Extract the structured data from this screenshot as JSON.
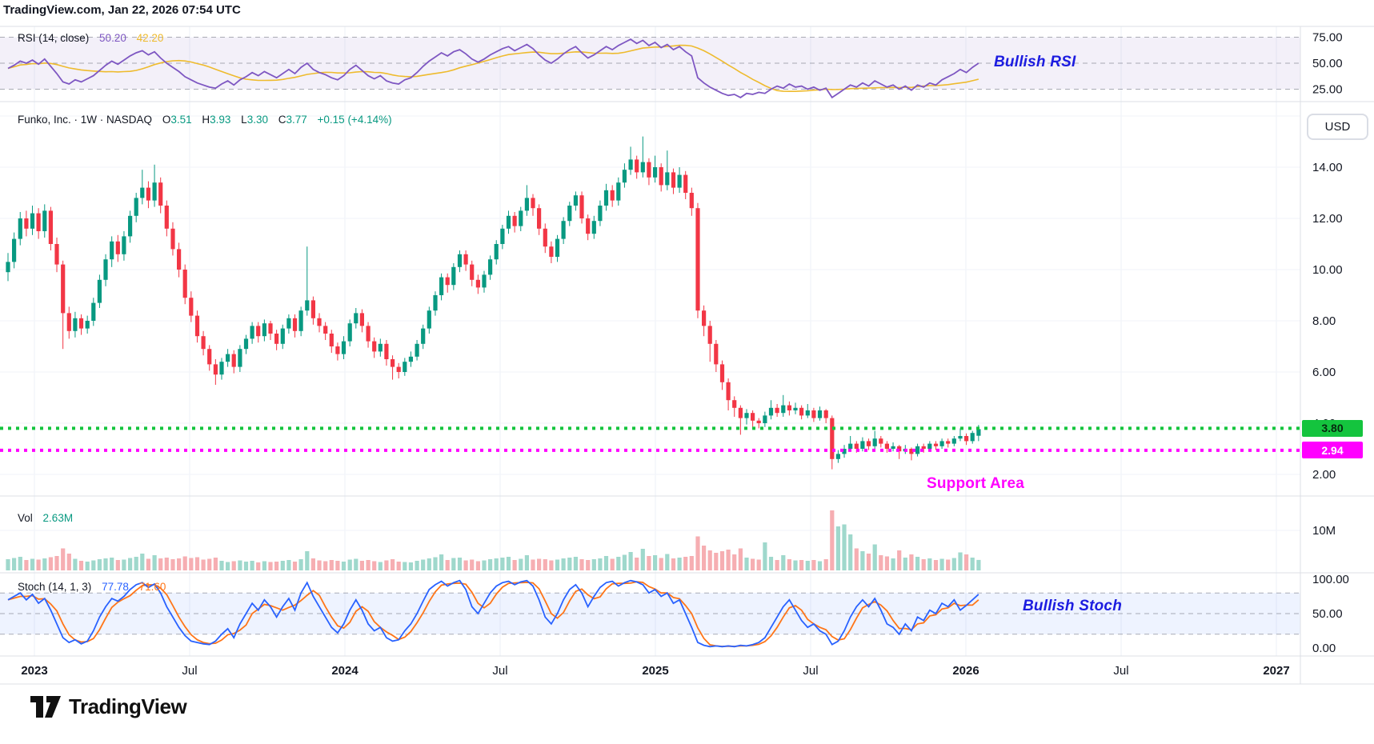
{
  "header": {
    "text": "TradingView.com, Jan 22, 2026 07:54 UTC"
  },
  "footer": {
    "brand": "TradingView"
  },
  "colors": {
    "up": "#089981",
    "down": "#f23645",
    "vol_up": "#9fd8cc",
    "vol_down": "#f6aeb2",
    "rsi": "#7e57c2",
    "rsi_ma": "#eebb2e",
    "stoch_k": "#2962ff",
    "stoch_d": "#ff7518",
    "resistance": "#14c43e",
    "support": "#ff00ff",
    "ann_blue": "#1c1ce0",
    "text": "#131722",
    "grid": "#eef1f7",
    "grid_h": "#f1f3f9",
    "separator": "#dcdfe6",
    "dash": "#80848f",
    "band_rsi": "rgba(126,87,194,0.09)",
    "band_stoch": "rgba(41,98,255,0.08)"
  },
  "legends": {
    "rsi": {
      "name": "RSI (14, close)",
      "value": "50.20",
      "ma": "42.20"
    },
    "symbol": {
      "name": "Funko, Inc. · 1W · NASDAQ",
      "o_label": "O",
      "o": "3.51",
      "h_label": "H",
      "h": "3.93",
      "l_label": "L",
      "l": "3.30",
      "c_label": "C",
      "c": "3.77",
      "change": "+0.15 (+4.14%)"
    },
    "vol": {
      "label": "Vol",
      "value": "2.63M"
    },
    "stoch": {
      "name": "Stoch (14, 1, 3)",
      "k": "77.78",
      "d": "71.60"
    }
  },
  "annotations": {
    "rsi": "Bullish RSI",
    "support": "Support Area",
    "stoch": "Bullish Stoch"
  },
  "axis": {
    "currency": "USD"
  },
  "chart_data": {
    "type": "candlestick",
    "symbol": "Funko, Inc.",
    "timeframe": "1W",
    "exchange": "NASDAQ",
    "last_bar": {
      "open": 3.51,
      "high": 3.93,
      "low": 3.3,
      "close": 3.77,
      "change": "+0.15 (+4.14%)"
    },
    "price_axis_ticks": [
      "14.00",
      "12.00",
      "10.00",
      "8.00",
      "6.00",
      "4.00",
      "2.00"
    ],
    "rsi_axis_ticks": [
      "75.00",
      "50.00",
      "25.00"
    ],
    "stoch_axis_ticks": [
      "100.00",
      "50.00",
      "0.00"
    ],
    "vol_axis_tick": "10M",
    "time_axis": [
      {
        "text": "2023",
        "major": true
      },
      {
        "text": "Jul",
        "major": false
      },
      {
        "text": "2024",
        "major": true
      },
      {
        "text": "Jul",
        "major": false
      },
      {
        "text": "2025",
        "major": true
      },
      {
        "text": "Jul",
        "major": false
      },
      {
        "text": "2026",
        "major": true
      },
      {
        "text": "Jul",
        "major": false
      },
      {
        "text": "2027",
        "major": true
      }
    ],
    "levels": {
      "resistance": 3.8,
      "support": 2.94
    },
    "rsi_current": 50.2,
    "rsi_ma_current": 42.2,
    "stoch_k_current": 77.78,
    "stoch_d_current": 71.6,
    "vol_current_m": 2.63,
    "candles": [
      [
        9.9,
        10.65,
        9.55,
        10.3
      ],
      [
        10.3,
        11.45,
        10.05,
        11.2
      ],
      [
        11.2,
        12.25,
        10.95,
        12.0
      ],
      [
        12.0,
        12.3,
        11.3,
        11.6
      ],
      [
        11.6,
        12.5,
        11.35,
        12.2
      ],
      [
        12.2,
        12.4,
        11.2,
        11.5
      ],
      [
        11.5,
        12.55,
        11.25,
        12.3
      ],
      [
        12.3,
        12.45,
        10.75,
        11.0
      ],
      [
        11.0,
        11.25,
        9.9,
        10.2
      ],
      [
        10.2,
        10.35,
        6.9,
        8.3
      ],
      [
        8.3,
        8.55,
        7.3,
        7.6
      ],
      [
        7.6,
        8.35,
        7.35,
        8.1
      ],
      [
        8.1,
        8.25,
        7.45,
        7.7
      ],
      [
        7.7,
        8.2,
        7.5,
        8.0
      ],
      [
        8.0,
        8.9,
        7.8,
        8.7
      ],
      [
        8.7,
        9.8,
        8.5,
        9.6
      ],
      [
        9.6,
        10.6,
        9.35,
        10.4
      ],
      [
        10.4,
        11.3,
        10.1,
        11.1
      ],
      [
        11.1,
        11.35,
        10.3,
        10.6
      ],
      [
        10.6,
        11.5,
        10.35,
        11.3
      ],
      [
        11.3,
        12.3,
        11.05,
        12.1
      ],
      [
        12.1,
        13.0,
        11.85,
        12.8
      ],
      [
        12.8,
        13.9,
        12.55,
        13.2
      ],
      [
        13.2,
        13.45,
        12.4,
        12.7
      ],
      [
        12.7,
        14.1,
        12.45,
        13.4
      ],
      [
        13.4,
        13.6,
        12.2,
        12.5
      ],
      [
        12.5,
        12.7,
        11.3,
        11.6
      ],
      [
        11.6,
        11.85,
        10.55,
        10.8
      ],
      [
        10.8,
        11.05,
        9.7,
        10.0
      ],
      [
        10.0,
        10.2,
        8.65,
        8.9
      ],
      [
        8.9,
        9.15,
        7.95,
        8.2
      ],
      [
        8.2,
        8.4,
        7.15,
        7.4
      ],
      [
        7.4,
        7.6,
        6.65,
        6.9
      ],
      [
        6.9,
        7.05,
        6.05,
        6.3
      ],
      [
        6.3,
        6.5,
        5.5,
        5.9
      ],
      [
        5.9,
        6.55,
        5.7,
        6.4
      ],
      [
        6.4,
        6.9,
        6.2,
        6.7
      ],
      [
        6.7,
        6.85,
        5.95,
        6.2
      ],
      [
        6.2,
        7.05,
        6.0,
        6.9
      ],
      [
        6.9,
        7.45,
        6.7,
        7.3
      ],
      [
        7.3,
        7.95,
        7.1,
        7.8
      ],
      [
        7.8,
        7.95,
        7.15,
        7.4
      ],
      [
        7.4,
        8.05,
        7.2,
        7.9
      ],
      [
        7.9,
        8.0,
        7.25,
        7.5
      ],
      [
        7.5,
        7.65,
        6.85,
        7.1
      ],
      [
        7.1,
        7.85,
        6.9,
        7.7
      ],
      [
        7.7,
        8.25,
        7.5,
        8.1
      ],
      [
        8.1,
        8.25,
        7.35,
        7.6
      ],
      [
        7.6,
        8.55,
        7.4,
        8.4
      ],
      [
        8.4,
        10.9,
        8.2,
        8.8
      ],
      [
        8.8,
        8.95,
        7.85,
        8.1
      ],
      [
        8.1,
        8.3,
        7.55,
        7.8
      ],
      [
        7.8,
        7.95,
        7.25,
        7.5
      ],
      [
        7.5,
        7.65,
        6.75,
        7.0
      ],
      [
        7.0,
        7.15,
        6.45,
        6.7
      ],
      [
        6.7,
        7.4,
        6.5,
        7.2
      ],
      [
        7.2,
        8.05,
        7.0,
        7.9
      ],
      [
        7.9,
        8.5,
        7.7,
        8.3
      ],
      [
        8.3,
        8.45,
        7.55,
        7.8
      ],
      [
        7.8,
        7.95,
        6.95,
        7.2
      ],
      [
        7.2,
        7.35,
        6.55,
        6.8
      ],
      [
        6.8,
        7.3,
        6.6,
        7.1
      ],
      [
        7.1,
        7.25,
        6.25,
        6.5
      ],
      [
        6.5,
        6.65,
        5.7,
        6.2
      ],
      [
        6.2,
        6.35,
        5.75,
        6.0
      ],
      [
        6.0,
        6.55,
        5.85,
        6.4
      ],
      [
        6.4,
        6.8,
        6.2,
        6.6
      ],
      [
        6.6,
        7.25,
        6.45,
        7.1
      ],
      [
        7.1,
        7.85,
        6.9,
        7.7
      ],
      [
        7.7,
        8.55,
        7.5,
        8.4
      ],
      [
        8.4,
        9.15,
        8.2,
        9.0
      ],
      [
        9.0,
        9.85,
        8.8,
        9.7
      ],
      [
        9.7,
        9.85,
        9.1,
        9.4
      ],
      [
        9.4,
        10.25,
        9.2,
        10.1
      ],
      [
        10.1,
        10.75,
        9.9,
        10.6
      ],
      [
        10.6,
        10.75,
        9.95,
        10.2
      ],
      [
        10.2,
        10.35,
        9.35,
        9.6
      ],
      [
        9.6,
        9.8,
        9.05,
        9.3
      ],
      [
        9.3,
        9.95,
        9.1,
        9.8
      ],
      [
        9.8,
        10.55,
        9.6,
        10.4
      ],
      [
        10.4,
        11.15,
        10.2,
        11.0
      ],
      [
        11.0,
        11.75,
        10.8,
        11.6
      ],
      [
        11.6,
        12.3,
        11.4,
        12.1
      ],
      [
        12.1,
        12.25,
        11.45,
        11.7
      ],
      [
        11.7,
        12.45,
        11.5,
        12.3
      ],
      [
        12.3,
        13.3,
        12.1,
        12.8
      ],
      [
        12.8,
        12.95,
        12.1,
        12.4
      ],
      [
        12.4,
        12.55,
        11.35,
        11.6
      ],
      [
        11.6,
        11.8,
        10.65,
        10.9
      ],
      [
        10.9,
        11.1,
        10.25,
        10.5
      ],
      [
        10.5,
        11.35,
        10.3,
        11.2
      ],
      [
        11.2,
        12.05,
        11.0,
        11.9
      ],
      [
        11.9,
        12.65,
        11.7,
        12.5
      ],
      [
        12.5,
        13.05,
        12.3,
        12.9
      ],
      [
        12.9,
        13.05,
        11.8,
        12.0
      ],
      [
        12.0,
        12.15,
        11.15,
        11.4
      ],
      [
        11.4,
        12.1,
        11.2,
        11.9
      ],
      [
        11.9,
        12.7,
        11.7,
        12.5
      ],
      [
        12.5,
        13.35,
        12.3,
        13.1
      ],
      [
        13.1,
        13.3,
        12.45,
        12.7
      ],
      [
        12.7,
        13.6,
        12.5,
        13.4
      ],
      [
        13.4,
        14.15,
        13.2,
        13.9
      ],
      [
        13.9,
        14.8,
        13.7,
        14.3
      ],
      [
        14.3,
        14.45,
        13.55,
        13.8
      ],
      [
        13.8,
        15.2,
        13.6,
        14.2
      ],
      [
        14.2,
        14.35,
        13.3,
        13.6
      ],
      [
        13.6,
        14.45,
        13.4,
        14.0
      ],
      [
        14.0,
        14.15,
        13.05,
        13.3
      ],
      [
        13.3,
        14.65,
        13.1,
        13.8
      ],
      [
        13.8,
        13.95,
        12.95,
        13.2
      ],
      [
        13.2,
        14.0,
        13.0,
        13.7
      ],
      [
        13.7,
        13.85,
        12.75,
        13.0
      ],
      [
        13.0,
        13.2,
        12.1,
        12.4
      ],
      [
        12.4,
        12.6,
        8.1,
        8.4
      ],
      [
        8.4,
        8.6,
        7.4,
        7.8
      ],
      [
        7.8,
        8.0,
        6.4,
        7.1
      ],
      [
        7.1,
        7.25,
        6.0,
        6.3
      ],
      [
        6.3,
        6.45,
        5.3,
        5.6
      ],
      [
        5.6,
        5.75,
        4.5,
        4.9
      ],
      [
        4.9,
        5.05,
        4.25,
        4.6
      ],
      [
        4.6,
        4.7,
        3.55,
        4.2
      ],
      [
        4.2,
        4.55,
        3.95,
        4.4
      ],
      [
        4.4,
        4.5,
        3.85,
        4.1
      ],
      [
        4.1,
        4.2,
        3.8,
        4.0
      ],
      [
        4.0,
        4.45,
        3.85,
        4.3
      ],
      [
        4.3,
        4.9,
        4.15,
        4.6
      ],
      [
        4.6,
        4.75,
        4.25,
        4.4
      ],
      [
        4.4,
        5.1,
        4.25,
        4.7
      ],
      [
        4.7,
        4.85,
        4.3,
        4.5
      ],
      [
        4.5,
        4.8,
        4.35,
        4.6
      ],
      [
        4.6,
        4.7,
        4.15,
        4.3
      ],
      [
        4.3,
        4.75,
        4.2,
        4.5
      ],
      [
        4.5,
        4.6,
        4.05,
        4.2
      ],
      [
        4.2,
        4.65,
        4.1,
        4.5
      ],
      [
        4.5,
        4.55,
        4.0,
        4.2
      ],
      [
        4.2,
        4.3,
        2.2,
        2.6
      ],
      [
        2.6,
        2.95,
        2.45,
        2.8
      ],
      [
        2.8,
        3.15,
        2.65,
        3.0
      ],
      [
        3.0,
        3.5,
        2.9,
        3.2
      ],
      [
        3.2,
        3.3,
        2.85,
        3.0
      ],
      [
        3.0,
        3.45,
        2.9,
        3.3
      ],
      [
        3.3,
        3.4,
        2.95,
        3.1
      ],
      [
        3.1,
        3.7,
        3.0,
        3.4
      ],
      [
        3.4,
        3.5,
        3.05,
        3.2
      ],
      [
        3.2,
        3.3,
        2.85,
        3.0
      ],
      [
        3.0,
        3.25,
        2.9,
        3.1
      ],
      [
        3.1,
        3.15,
        2.6,
        2.9
      ],
      [
        2.9,
        3.15,
        2.8,
        3.0
      ],
      [
        3.0,
        3.05,
        2.55,
        2.8
      ],
      [
        2.8,
        3.2,
        2.7,
        3.1
      ],
      [
        3.1,
        3.2,
        2.85,
        3.0
      ],
      [
        3.0,
        3.3,
        2.9,
        3.2
      ],
      [
        3.2,
        3.3,
        2.95,
        3.1
      ],
      [
        3.1,
        3.4,
        3.0,
        3.3
      ],
      [
        3.3,
        3.4,
        3.05,
        3.2
      ],
      [
        3.2,
        3.5,
        3.1,
        3.4
      ],
      [
        3.4,
        3.8,
        3.3,
        3.5
      ],
      [
        3.5,
        3.6,
        3.15,
        3.3
      ],
      [
        3.3,
        3.7,
        3.2,
        3.62
      ],
      [
        3.51,
        3.93,
        3.3,
        3.77
      ]
    ],
    "volumes_m": [
      2.8,
      3.1,
      3.4,
      2.6,
      2.9,
      2.7,
      3.0,
      3.3,
      3.6,
      5.5,
      4.2,
      2.9,
      2.4,
      2.2,
      2.5,
      2.8,
      3.0,
      3.2,
      2.6,
      2.7,
      3.1,
      3.4,
      4.2,
      2.9,
      3.8,
      3.0,
      3.2,
      2.8,
      3.0,
      3.5,
      3.1,
      3.3,
      2.7,
      2.9,
      3.2,
      2.4,
      2.1,
      2.3,
      2.5,
      2.2,
      2.4,
      2.0,
      2.3,
      2.1,
      2.2,
      2.4,
      2.6,
      2.2,
      2.8,
      4.8,
      3.0,
      2.5,
      2.3,
      2.6,
      2.4,
      2.2,
      2.7,
      2.9,
      2.4,
      2.6,
      2.3,
      2.1,
      2.5,
      2.8,
      2.2,
      2.1,
      2.0,
      2.4,
      2.7,
      3.0,
      3.3,
      4.0,
      2.6,
      3.1,
      3.2,
      2.5,
      2.7,
      2.3,
      2.5,
      2.8,
      3.0,
      3.2,
      3.4,
      2.6,
      2.9,
      3.8,
      2.7,
      2.9,
      2.8,
      2.5,
      2.7,
      3.0,
      3.2,
      3.4,
      2.8,
      2.6,
      2.8,
      3.0,
      3.6,
      2.9,
      3.4,
      3.9,
      4.6,
      3.2,
      5.4,
      3.6,
      3.8,
      3.1,
      4.1,
      3.0,
      3.2,
      3.4,
      3.6,
      8.5,
      6.2,
      5.0,
      4.4,
      4.8,
      5.2,
      4.0,
      5.5,
      3.2,
      2.9,
      2.7,
      7.0,
      3.4,
      2.6,
      3.8,
      2.8,
      2.5,
      2.6,
      2.4,
      2.6,
      2.3,
      2.8,
      15.0,
      11.0,
      11.5,
      9.0,
      5.5,
      4.8,
      4.2,
      6.5,
      3.8,
      3.5,
      3.0,
      5.0,
      3.2,
      4.0,
      3.4,
      2.8,
      3.0,
      2.6,
      2.9,
      2.7,
      3.1,
      4.5,
      4.0,
      3.2,
      2.63
    ],
    "rsi_values": [
      45,
      48,
      52,
      50,
      53,
      49,
      54,
      47,
      40,
      32,
      30,
      34,
      32,
      35,
      38,
      43,
      48,
      52,
      49,
      53,
      57,
      60,
      62,
      58,
      61,
      55,
      50,
      46,
      42,
      37,
      34,
      31,
      29,
      27,
      26,
      30,
      33,
      29,
      34,
      37,
      41,
      38,
      42,
      39,
      36,
      40,
      44,
      40,
      46,
      50,
      44,
      41,
      39,
      36,
      34,
      38,
      44,
      48,
      43,
      38,
      35,
      38,
      33,
      31,
      30,
      34,
      36,
      41,
      47,
      52,
      56,
      60,
      57,
      61,
      63,
      59,
      54,
      51,
      54,
      58,
      61,
      64,
      66,
      62,
      65,
      68,
      64,
      58,
      53,
      50,
      54,
      59,
      63,
      66,
      60,
      55,
      58,
      62,
      66,
      63,
      67,
      70,
      73,
      69,
      72,
      67,
      70,
      65,
      68,
      63,
      66,
      61,
      57,
      36,
      31,
      27,
      24,
      21,
      19,
      20,
      17,
      21,
      20,
      22,
      21,
      25,
      28,
      26,
      30,
      27,
      28,
      25,
      27,
      24,
      26,
      17,
      21,
      25,
      29,
      27,
      31,
      28,
      33,
      30,
      27,
      29,
      25,
      28,
      24,
      29,
      27,
      31,
      29,
      34,
      37,
      40,
      44,
      41,
      46,
      50
    ],
    "stoch_k_values": [
      70,
      75,
      80,
      70,
      78,
      65,
      72,
      55,
      35,
      15,
      8,
      12,
      6,
      10,
      25,
      45,
      60,
      72,
      68,
      75,
      85,
      92,
      95,
      88,
      93,
      80,
      60,
      45,
      30,
      18,
      10,
      8,
      6,
      5,
      10,
      20,
      28,
      15,
      35,
      50,
      65,
      55,
      70,
      60,
      45,
      60,
      72,
      55,
      80,
      95,
      75,
      60,
      45,
      30,
      22,
      35,
      55,
      70,
      55,
      35,
      25,
      30,
      15,
      10,
      12,
      25,
      35,
      50,
      68,
      85,
      92,
      97,
      90,
      95,
      98,
      85,
      60,
      50,
      65,
      80,
      90,
      95,
      97,
      92,
      96,
      98,
      90,
      70,
      45,
      35,
      50,
      70,
      85,
      92,
      80,
      60,
      75,
      88,
      95,
      97,
      90,
      95,
      98,
      96,
      92,
      80,
      85,
      75,
      80,
      65,
      70,
      50,
      30,
      8,
      4,
      2,
      3,
      2,
      3,
      2,
      4,
      3,
      5,
      8,
      15,
      30,
      45,
      60,
      70,
      55,
      40,
      30,
      35,
      25,
      20,
      5,
      10,
      25,
      45,
      60,
      70,
      60,
      72,
      55,
      35,
      30,
      20,
      35,
      25,
      45,
      40,
      55,
      50,
      65,
      60,
      70,
      55,
      62,
      70,
      78
    ]
  }
}
